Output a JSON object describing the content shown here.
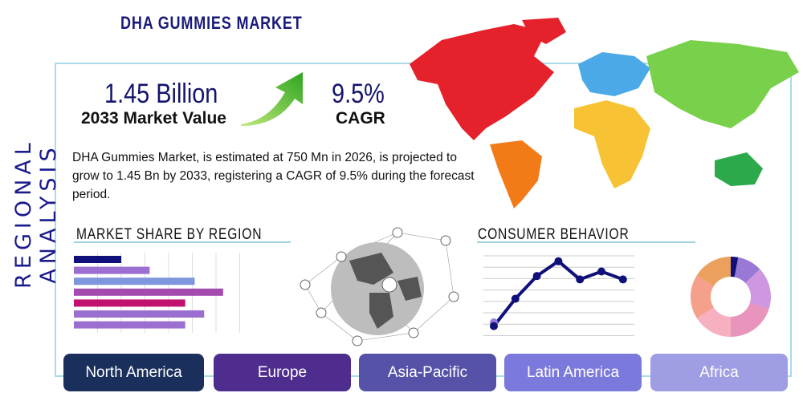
{
  "title": "DHA GUMMIES MARKET",
  "side_title": "REGIONAL ANALYSIS",
  "market_value": {
    "value": "1.45 Billion",
    "label": "2033 Market Value"
  },
  "cagr": {
    "value": "9.5%",
    "label": "CAGR"
  },
  "description": "DHA Gummies Market, is estimated at 750 Mn in 2026, is projected to grow to 1.45 Bn by 2033, registering a CAGR of 9.5% during the forecast period.",
  "sections": {
    "market_share": "MARKET SHARE BY REGION",
    "consumer_behavior": "CONSUMER BEHAVIOR"
  },
  "regions": [
    {
      "label": "North America",
      "color": "#1b2f5c"
    },
    {
      "label": "Europe",
      "color": "#4f2d8e"
    },
    {
      "label": "Asia-Pacific",
      "color": "#5552a8"
    },
    {
      "label": "Latin America",
      "color": "#7b79dc"
    },
    {
      "label": "Africa",
      "color": "#9f9de3"
    }
  ],
  "chart_data": [
    {
      "type": "bar",
      "orientation": "horizontal",
      "grid": true,
      "values": [
        2,
        3.2,
        5.1,
        6.3,
        4.7,
        5.5,
        4.7
      ],
      "colors": [
        "#10107a",
        "#9b6fcf",
        "#7f95de",
        "#a54bb0",
        "#c2106f",
        "#9b6fcf",
        "#9b6fcf"
      ]
    },
    {
      "type": "line",
      "grid": true,
      "values": [
        0.8,
        3.2,
        5.2,
        6.5,
        4.9,
        5.6,
        4.9
      ],
      "color": "#10107a"
    },
    {
      "type": "pie",
      "donut": true,
      "values": [
        3,
        10,
        17,
        20,
        16,
        18,
        16
      ],
      "colors": [
        "#10107a",
        "#9a78d6",
        "#cf97e0",
        "#e894bd",
        "#f7b0c0",
        "#f4a08a",
        "#eca05e"
      ]
    }
  ]
}
